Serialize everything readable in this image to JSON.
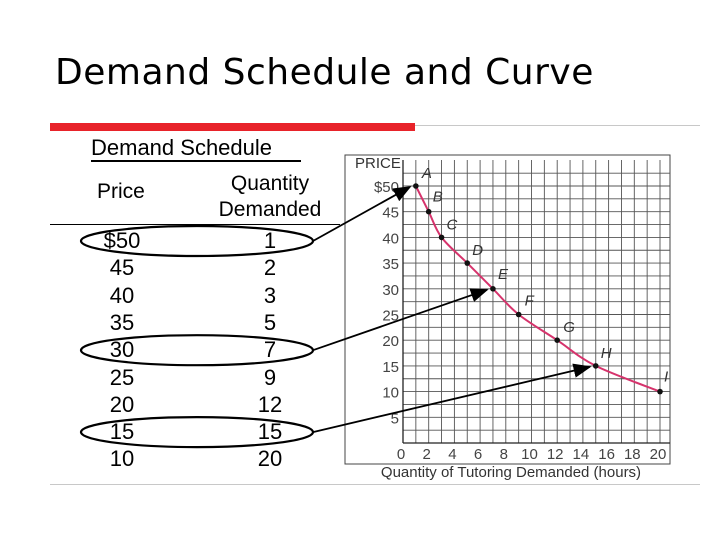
{
  "slide": {
    "title": "Demand Schedule and Curve"
  },
  "schedule": {
    "title": "Demand Schedule",
    "price_header": "Price",
    "qty_header_line1": "Quantity",
    "qty_header_line2": "Demanded",
    "rows": [
      {
        "price": "$50",
        "qty": "1"
      },
      {
        "price": "45",
        "qty": "2"
      },
      {
        "price": "40",
        "qty": "3"
      },
      {
        "price": "35",
        "qty": "5"
      },
      {
        "price": "30",
        "qty": "7"
      },
      {
        "price": "25",
        "qty": "9"
      },
      {
        "price": "20",
        "qty": "12"
      },
      {
        "price": "15",
        "qty": "15"
      },
      {
        "price": "10",
        "qty": "20"
      }
    ],
    "circled_rows": [
      0,
      4,
      7
    ]
  },
  "chart_data": {
    "type": "line",
    "ylabel": "PRICE",
    "xlabel": "Quantity of Tutoring Demanded (hours)",
    "xlim": [
      0,
      20
    ],
    "ylim": [
      0,
      50
    ],
    "x_ticks": [
      "0",
      "2",
      "4",
      "6",
      "8",
      "10",
      "12",
      "14",
      "16",
      "18",
      "20"
    ],
    "y_ticks": [
      "$50",
      "45",
      "40",
      "35",
      "30",
      "25",
      "20",
      "15",
      "10",
      "5"
    ],
    "grid": true,
    "line_color": "#d6336c",
    "points": [
      {
        "label": "A",
        "x": 1,
        "y": 50
      },
      {
        "label": "B",
        "x": 2,
        "y": 45
      },
      {
        "label": "C",
        "x": 3,
        "y": 40
      },
      {
        "label": "D",
        "x": 5,
        "y": 35
      },
      {
        "label": "E",
        "x": 7,
        "y": 30
      },
      {
        "label": "F",
        "x": 9,
        "y": 25
      },
      {
        "label": "G",
        "x": 12,
        "y": 20
      },
      {
        "label": "H",
        "x": 15,
        "y": 15
      },
      {
        "label": "I",
        "x": 20,
        "y": 10
      }
    ]
  }
}
